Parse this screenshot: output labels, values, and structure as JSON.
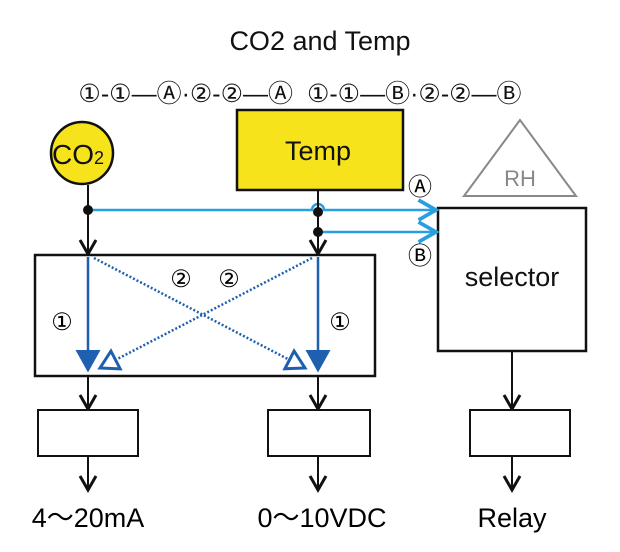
{
  "title": "CO2 and Temp",
  "legend_line": "①-①—Ⓐ·②-②—Ⓐ  ①-①—Ⓑ·②-②—Ⓑ",
  "sensors": {
    "co2": "CO",
    "co2_sub": "2",
    "temp": "Temp",
    "rh": "RH"
  },
  "selector": "selector",
  "markers": {
    "a": "Ⓐ",
    "b": "Ⓑ",
    "one": "①",
    "two": "②"
  },
  "outputs": [
    "4～20mA",
    "0～10VDC",
    "Relay"
  ],
  "colors": {
    "sensor_fill": "#f7e31b",
    "signal_blue": "#2a9fe0",
    "route_blue": "#1f5fb0",
    "rh_gray": "#888888"
  }
}
